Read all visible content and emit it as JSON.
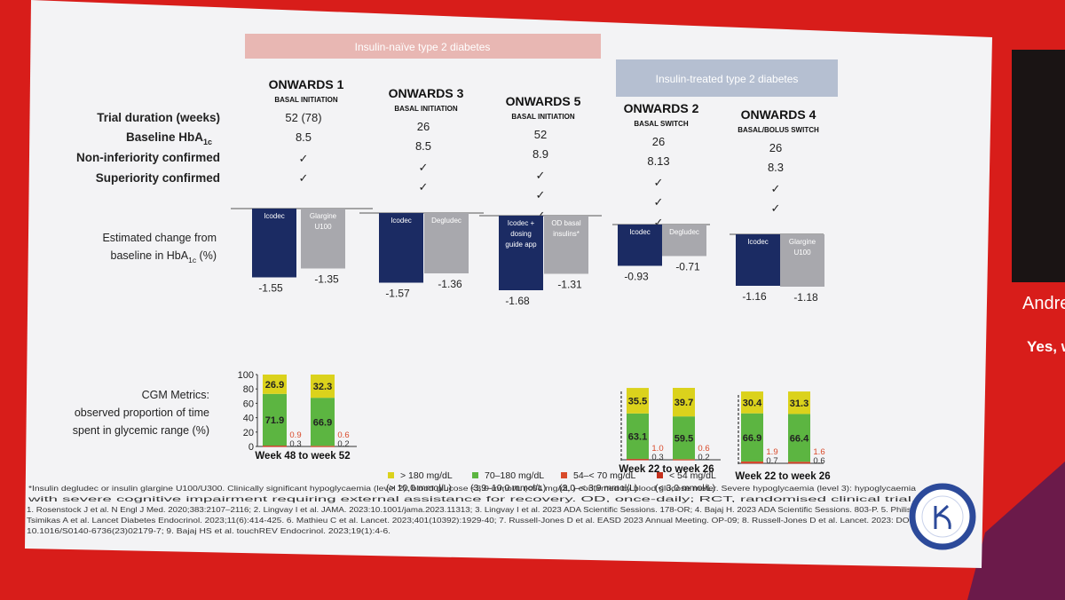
{
  "colors": {
    "frame_red": "#d81d1a",
    "slide_bg": "#f3f3f5",
    "naive_banner": "#e8b7b3",
    "treated_banner": "#b5bfd1",
    "icodec": "#1b2b63",
    "comparator": "#a8a8ad",
    "above180": "#dbd21c",
    "inrange": "#5cb541",
    "from54to70": "#d94a2a",
    "below54": "#c4301c"
  },
  "groups": {
    "naive": "Insulin-naïve type 2 diabetes",
    "treated": "Insulin-treated type 2 diabetes"
  },
  "row_labels": {
    "duration": "Trial duration (weeks)",
    "baseline_main": "Baseline HbA",
    "baseline_sub": "1c",
    "noninf": "Non-inferiority confirmed",
    "sup": "Superiority confirmed",
    "change_line1": "Estimated change from",
    "change_line2_main": "baseline in HbA",
    "change_line2_sub": "1c",
    "change_line2_tail": " (%)",
    "cgm_line1": "CGM Metrics:",
    "cgm_line2": "observed proportion of time",
    "cgm_line3": "spent in glycemic range (%)"
  },
  "trials": [
    {
      "name": "ONWARDS 1",
      "sub": "BASAL INITIATION",
      "duration": "52 (78)",
      "baseline": "8.5",
      "noninf": "✓",
      "sup": "✓",
      "sup2": ""
    },
    {
      "name": "ONWARDS 3",
      "sub": "BASAL INITIATION",
      "duration": "26",
      "baseline": "8.5",
      "noninf": "✓",
      "sup": "✓",
      "sup2": ""
    },
    {
      "name": "ONWARDS 5",
      "sub": "BASAL INITIATION",
      "duration": "52",
      "baseline": "8.9",
      "noninf": "✓",
      "sup": "✓",
      "sup2": "✓"
    },
    {
      "name": "ONWARDS 2",
      "sub": "BASAL SWITCH",
      "duration": "26",
      "baseline": "8.13",
      "noninf": "✓",
      "sup": "✓",
      "sup2": "✓"
    },
    {
      "name": "ONWARDS 4",
      "sub": "BASAL/BOLUS SWITCH",
      "duration": "26",
      "baseline": "8.3",
      "noninf": "✓",
      "sup": "✓",
      "sup2": ""
    }
  ],
  "chart_data": [
    {
      "type": "bar",
      "title": "Estimated change from baseline in HbA1c (%)",
      "ylabel": "",
      "categories": [
        "ONWARDS 1",
        "ONWARDS 3",
        "ONWARDS 5",
        "ONWARDS 2",
        "ONWARDS 4"
      ],
      "series": [
        {
          "name": "Icodec",
          "bar_labels": [
            "Icodec",
            "Icodec",
            "Icodec + dosing guide app",
            "Icodec",
            "Icodec"
          ],
          "values": [
            -1.55,
            -1.57,
            -1.68,
            -0.93,
            -1.16
          ],
          "value_labels": [
            "-1.55",
            "-1.57",
            "-1.68",
            "-0.93",
            "-1.16"
          ]
        },
        {
          "name": "Comparator",
          "bar_labels": [
            "Glargine U100",
            "Degludec",
            "OD basal insulins*",
            "Degludec",
            "Glargine U100"
          ],
          "values": [
            -1.35,
            -1.36,
            -1.31,
            -0.71,
            -1.18
          ],
          "value_labels": [
            "-1.35",
            "-1.36",
            "-1.31",
            "-0.71",
            "-1.18"
          ]
        }
      ]
    },
    {
      "type": "bar",
      "stacked": true,
      "title": "CGM Metrics: observed proportion of time spent in glycemic range (%)",
      "ylim": [
        0,
        100
      ],
      "yticks": [
        "100",
        "80",
        "60",
        "40",
        "20",
        "0"
      ],
      "groups": [
        {
          "label": "Week 48 to week 52",
          "bars": [
            {
              "above180": 26.9,
              "inrange": 71.9,
              "r54to70": 0.9,
              "below54": 0.3
            },
            {
              "above180": 32.3,
              "inrange": 66.9,
              "r54to70": 0.6,
              "below54": 0.2
            }
          ]
        },
        {
          "label": "Week 22 to week 26",
          "bars": [
            {
              "above180": 35.5,
              "inrange": 63.1,
              "r54to70": 1.0,
              "below54": 0.3
            },
            {
              "above180": 39.7,
              "inrange": 59.5,
              "r54to70": 0.6,
              "below54": 0.2
            }
          ]
        },
        {
          "label": "Week 22 to week 26",
          "bars": [
            {
              "above180": 30.4,
              "inrange": 66.9,
              "r54to70": 1.9,
              "below54": 0.7
            },
            {
              "above180": 31.3,
              "inrange": 66.4,
              "r54to70": 1.6,
              "below54": 0.6
            }
          ]
        }
      ],
      "value_labels": {
        "above180": [
          "26.9",
          "32.3",
          "35.5",
          "39.7",
          "30.4",
          "31.3"
        ],
        "inrange": [
          "71.9",
          "66.9",
          "63.1",
          "59.5",
          "66.9",
          "66.4"
        ],
        "r54to70": [
          "0.9",
          "0.6",
          "1.0",
          "0.6",
          "1.9",
          "1.6"
        ],
        "below54": [
          "0.3",
          "0.2",
          "0.3",
          "0.2",
          "0.7",
          "0.6"
        ]
      },
      "legend": [
        {
          "key": "above180",
          "line1": "> 180 mg/dL",
          "line2": "(> 10,0 mmol/L)"
        },
        {
          "key": "inrange",
          "line1": "70–180 mg/dL",
          "line2": "(3,9–10,0 mmol/L)"
        },
        {
          "key": "from54to70",
          "line1": "54–< 70 mg/dL",
          "line2": "(3,0–< 3,9 mmol/L)"
        },
        {
          "key": "below54",
          "line1": "< 54 mg/dL",
          "line2": "(< 3,0 mmol/L)"
        }
      ]
    }
  ],
  "footnotes": [
    "*Insulin degludec or insulin glargine U100/U300. Clinically significant hypoglycaemia (level 2): blood glucose <3.0 mmol/L (<54 mg/dL ) confirmed by blood glucose meter. Severe hypoglycaemia (level 3): hypoglycaemia",
    "with severe cognitive impairment requiring external assistance for recovery. OD, once-daily; RCT, randomised clinical trial.",
    "1. Rosenstock J et al. N Engl J Med. 2020;383:2107–2116; 2. Lingvay I et al. JAMA. 2023:10.1001/jama.2023.11313; 3. Lingvay I et al. 2023 ADA Scientific Sessions. 178-OR; 4. Bajaj H. 2023 ADA Scientific Sessions. 803-P. 5. Philis-",
    "Tsimikas A et al. Lancet Diabetes Endocrinol. 2023;11(6):414-425. 6. Mathieu C et al. Lancet. 2023;401(10392):1929-40; 7. Russell-Jones D et al. EASD 2023 Annual Meeting. OP-09; 8. Russell-Jones D et al. Lancet. 2023: DOI:",
    "10.1016/S0140-6736(23)02179-7; 9. Bajaj HS et al. touchREV Endocrinol. 2023;19(1):4-6."
  ],
  "side_panel": {
    "name_partial": "Andre",
    "text_partial": "Yes, w"
  }
}
